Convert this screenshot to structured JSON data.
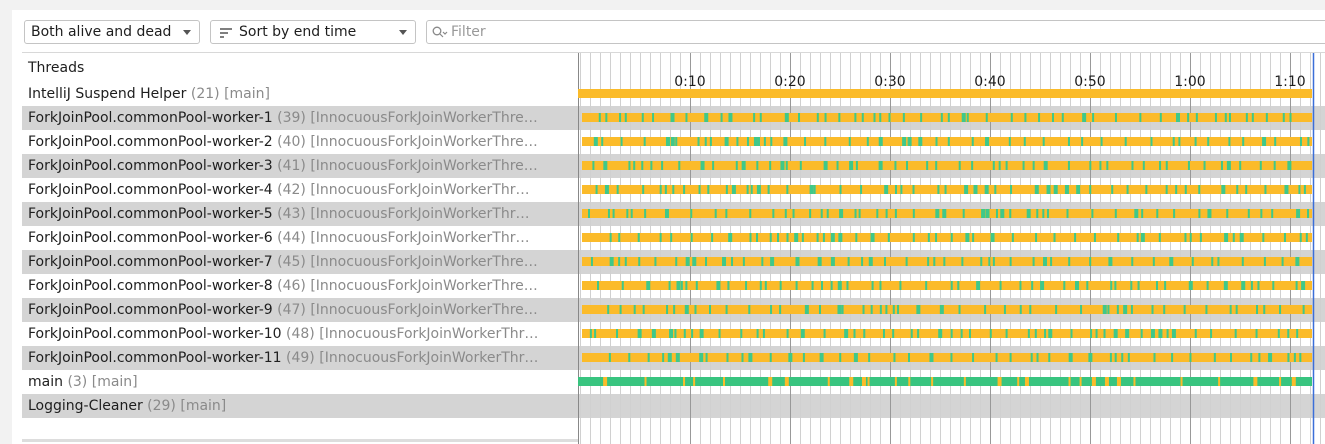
{
  "toolbar": {
    "state_filter": "Both alive and dead",
    "sort": "Sort by end time",
    "filter_placeholder": "Filter"
  },
  "table": {
    "header": "Threads",
    "rows": [
      {
        "name": "IntelliJ Suspend Helper",
        "id": "(21)",
        "group": "[main]"
      },
      {
        "name": "ForkJoinPool.commonPool-worker-1",
        "id": "(39)",
        "group": "[InnocuousForkJoinWorkerThre…"
      },
      {
        "name": "ForkJoinPool.commonPool-worker-2",
        "id": "(40)",
        "group": "[InnocuousForkJoinWorkerThre…"
      },
      {
        "name": "ForkJoinPool.commonPool-worker-3",
        "id": "(41)",
        "group": "[InnocuousForkJoinWorkerThre…"
      },
      {
        "name": "ForkJoinPool.commonPool-worker-4",
        "id": "(42)",
        "group": "[InnocuousForkJoinWorkerThr…"
      },
      {
        "name": "ForkJoinPool.commonPool-worker-5",
        "id": "(43)",
        "group": "[InnocuousForkJoinWorkerThr…"
      },
      {
        "name": "ForkJoinPool.commonPool-worker-6",
        "id": "(44)",
        "group": "[InnocuousForkJoinWorkerThr…"
      },
      {
        "name": "ForkJoinPool.commonPool-worker-7",
        "id": "(45)",
        "group": "[InnocuousForkJoinWorkerThre…"
      },
      {
        "name": "ForkJoinPool.commonPool-worker-8",
        "id": "(46)",
        "group": "[InnocuousForkJoinWorkerThre…"
      },
      {
        "name": "ForkJoinPool.commonPool-worker-9",
        "id": "(47)",
        "group": "[InnocuousForkJoinWorkerThre…"
      },
      {
        "name": "ForkJoinPool.commonPool-worker-10",
        "id": "(48)",
        "group": "[InnocuousForkJoinWorkerThr…"
      },
      {
        "name": "ForkJoinPool.commonPool-worker-11",
        "id": "(49)",
        "group": "[InnocuousForkJoinWorkerThr…"
      },
      {
        "name": "main",
        "id": "(3)",
        "group": "[main]"
      },
      {
        "name": "Logging-Cleaner",
        "id": "(29)",
        "group": "[main]"
      }
    ]
  },
  "timeline": {
    "ticks": [
      "0:10",
      "0:20",
      "0:30",
      "0:40",
      "0:50",
      "1:00",
      "1:10"
    ]
  }
}
